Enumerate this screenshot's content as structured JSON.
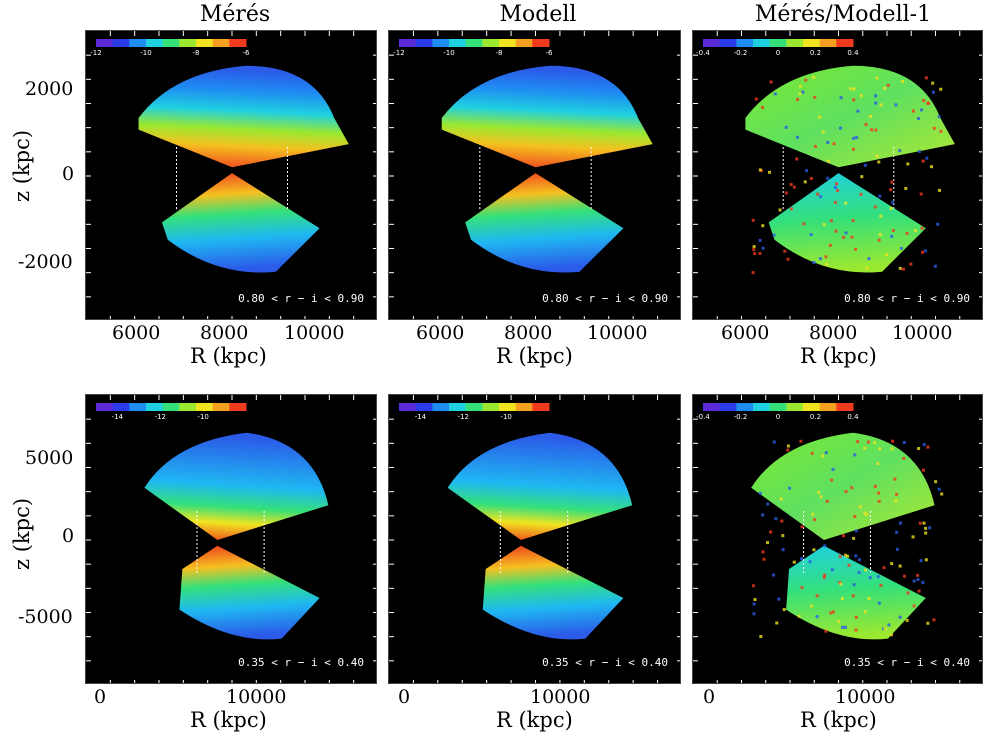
{
  "titles": [
    "Mérés",
    "Modell",
    "Mérés/Modell-1"
  ],
  "chart_data": [
    {
      "type": "heatmap",
      "row": "top",
      "panels": [
        "Mérés",
        "Modell",
        "Mérés/Modell-1"
      ],
      "xlabel": "R (kpc)",
      "ylabel": "z (kpc)",
      "x_ticks": [
        "6000",
        "8000",
        "10000"
      ],
      "y_ticks": [
        "2000",
        "0",
        "-2000"
      ],
      "range_label": "0.80 < r − i < 0.90",
      "colorbars": [
        {
          "ticks": [
            "-12",
            "-10",
            "-8",
            "-6"
          ],
          "range": [
            -12,
            -6
          ]
        },
        {
          "ticks": [
            "-12",
            "-10",
            "-8",
            "-6"
          ],
          "range": [
            -12,
            -6
          ]
        },
        {
          "ticks": [
            "-0.4",
            "-0.2",
            "0",
            "0.2",
            "0.4"
          ],
          "range": [
            -0.4,
            0.4
          ]
        }
      ]
    },
    {
      "type": "heatmap",
      "row": "bottom",
      "panels": [
        "Mérés",
        "Modell",
        "Mérés/Modell-1"
      ],
      "xlabel": "R (kpc)",
      "ylabel": "z (kpc)",
      "x_ticks": [
        "0",
        "10000"
      ],
      "y_ticks": [
        "5000",
        "0",
        "-5000"
      ],
      "range_label": "0.35 < r − i < 0.40",
      "colorbars": [
        {
          "ticks": [
            "-14",
            "-12",
            "-10"
          ],
          "range": [
            -15,
            -8
          ]
        },
        {
          "ticks": [
            "-14",
            "-12",
            "-10"
          ],
          "range": [
            -15,
            -8
          ]
        },
        {
          "ticks": [
            "-0.4",
            "-0.2",
            "0",
            "0.2",
            "0.4"
          ],
          "range": [
            -0.4,
            0.4
          ]
        }
      ]
    }
  ],
  "colors": {
    "background": "#000000",
    "colormap": "rainbow"
  }
}
